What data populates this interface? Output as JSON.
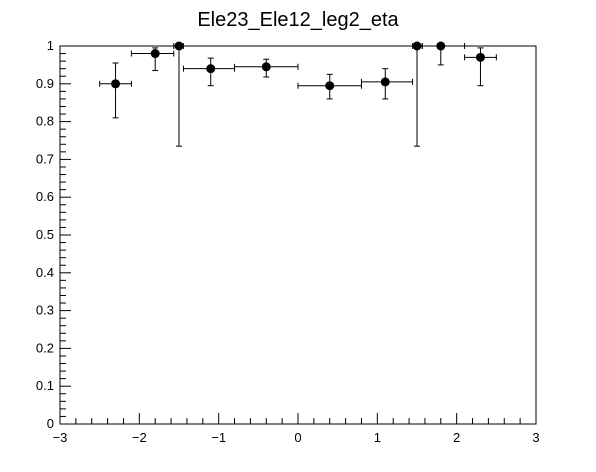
{
  "chart_data": {
    "type": "scatter",
    "title": "Ele23_Ele12_leg2_eta",
    "xlabel": "",
    "ylabel": "",
    "xlim": [
      -3,
      3
    ],
    "ylim": [
      0,
      1
    ],
    "grid": false,
    "x_ticks": [
      "−3",
      "−2",
      "−1",
      "0",
      "1",
      "2",
      "3"
    ],
    "y_ticks": [
      "0",
      "0.1",
      "0.2",
      "0.3",
      "0.4",
      "0.5",
      "0.6",
      "0.7",
      "0.8",
      "0.9",
      "1"
    ],
    "series": [
      {
        "points": [
          {
            "x": -2.3,
            "y": 0.9,
            "xlo": -2.5,
            "xhi": -2.1,
            "ylo": 0.81,
            "yhi": 0.955
          },
          {
            "x": -1.8,
            "y": 0.98,
            "xlo": -2.1,
            "xhi": -1.566,
            "ylo": 0.935,
            "yhi": 0.995
          },
          {
            "x": -1.5,
            "y": 1.0,
            "xlo": -1.566,
            "xhi": -1.4442,
            "ylo": 0.735,
            "yhi": 1.0
          },
          {
            "x": -1.1,
            "y": 0.94,
            "xlo": -1.4442,
            "xhi": -0.8,
            "ylo": 0.895,
            "yhi": 0.968
          },
          {
            "x": -0.4,
            "y": 0.945,
            "xlo": -0.8,
            "xhi": 0.0,
            "ylo": 0.918,
            "yhi": 0.965
          },
          {
            "x": 0.4,
            "y": 0.895,
            "xlo": 0.0,
            "xhi": 0.8,
            "ylo": 0.86,
            "yhi": 0.925
          },
          {
            "x": 1.1,
            "y": 0.905,
            "xlo": 0.8,
            "xhi": 1.4442,
            "ylo": 0.86,
            "yhi": 0.94
          },
          {
            "x": 1.5,
            "y": 1.0,
            "xlo": 1.4442,
            "xhi": 1.566,
            "ylo": 0.735,
            "yhi": 1.0
          },
          {
            "x": 1.8,
            "y": 1.0,
            "xlo": 1.566,
            "xhi": 2.1,
            "ylo": 0.95,
            "yhi": 1.0
          },
          {
            "x": 2.3,
            "y": 0.97,
            "xlo": 2.1,
            "xhi": 2.5,
            "ylo": 0.895,
            "yhi": 0.995
          }
        ]
      }
    ]
  }
}
